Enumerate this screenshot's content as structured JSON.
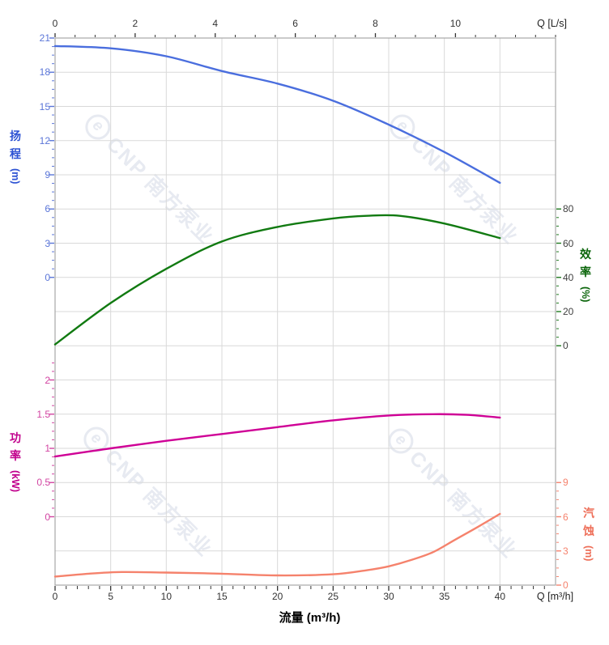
{
  "page": {
    "background": "#ffffff"
  },
  "watermark": {
    "text": "CNP 南方泵业",
    "logo_glyph": "e",
    "color": "#e7eaf1",
    "instances": 4
  },
  "chart_data": {
    "type": "line",
    "title": "",
    "x_axis": {
      "label_bottom": "流量 (m³/h)",
      "unit_bottom": "Q [m³/h]",
      "unit_top": "Q [L/s]",
      "range_m3h": [
        0,
        45
      ],
      "bottom_major_ticks": [
        0,
        5,
        10,
        15,
        20,
        25,
        30,
        35,
        40
      ],
      "bottom_minor_step": 1,
      "top_major_ticks_ls": [
        0,
        2,
        4,
        6,
        8,
        10
      ],
      "top_minor_step_ls": 0.5,
      "top_range_ls": [
        0,
        12.5
      ],
      "ls_to_m3h": 3.6,
      "tick_color": "#333333",
      "label_color": "#333333"
    },
    "y_axes": [
      {
        "id": "head",
        "title": "扬程",
        "unit": "(m)",
        "side": "left",
        "major_ticks": [
          21,
          18,
          15,
          12,
          9,
          6,
          3,
          0
        ],
        "major_step": 3,
        "minor_step": 0.75,
        "minor_range": [
          0,
          21
        ],
        "value_per_div": 3,
        "zero_div_index": 7,
        "title_color": "#2d52d3",
        "tick_color": "#5b76d8",
        "label_color": "#5b76d8"
      },
      {
        "id": "efficiency",
        "title": "效率",
        "unit": "(%)",
        "side": "right",
        "major_ticks": [
          80,
          60,
          40,
          20,
          0
        ],
        "major_step": 20,
        "minor_step": 5,
        "minor_range": [
          0,
          80
        ],
        "value_per_div": 20,
        "zero_div_index": 9,
        "title_color": "#0a650a",
        "tick_color": "#1f7a1f",
        "label_color": "#3f3f3f"
      },
      {
        "id": "power",
        "title": "功率",
        "unit": "(kW)",
        "side": "left",
        "major_ticks": [
          2,
          1.5,
          1,
          0.5,
          0
        ],
        "major_step": 0.5,
        "minor_step": 0.125,
        "minor_range": [
          0,
          2.25
        ],
        "value_per_div": 0.5,
        "zero_div_index": 14,
        "title_color": "#c1008c",
        "tick_color": "#d245a2",
        "label_color": "#d245a2"
      },
      {
        "id": "npsh",
        "title": "汽蚀",
        "unit": "(m)",
        "side": "right",
        "major_ticks": [
          9,
          6,
          3,
          0
        ],
        "major_step": 3,
        "minor_step": 0.75,
        "minor_range": [
          0,
          9
        ],
        "value_per_div": 3,
        "zero_div_index": 16,
        "title_color": "#ee6f59",
        "tick_color": "#f5836e",
        "label_color": "#f5836e"
      }
    ],
    "series": [
      {
        "name": "head-curve",
        "axis": "head",
        "color": "#4a6ede",
        "width": 2.4,
        "points": [
          [
            0,
            20.3
          ],
          [
            5,
            20.1
          ],
          [
            10,
            19.4
          ],
          [
            15,
            18.1
          ],
          [
            20,
            17.0
          ],
          [
            25,
            15.5
          ],
          [
            30,
            13.4
          ],
          [
            35,
            11.0
          ],
          [
            40,
            8.3
          ]
        ]
      },
      {
        "name": "efficiency-curve",
        "axis": "efficiency",
        "color": "#117a11",
        "width": 2.4,
        "points": [
          [
            0,
            0.8
          ],
          [
            5,
            25
          ],
          [
            10,
            45
          ],
          [
            15,
            61
          ],
          [
            20,
            69.5
          ],
          [
            25,
            74.5
          ],
          [
            28,
            76
          ],
          [
            31,
            76
          ],
          [
            35,
            71.5
          ],
          [
            40,
            63
          ]
        ]
      },
      {
        "name": "power-curve",
        "axis": "power",
        "color": "#cf0096",
        "width": 2.4,
        "points": [
          [
            0,
            0.88
          ],
          [
            5,
            1.0
          ],
          [
            10,
            1.11
          ],
          [
            15,
            1.21
          ],
          [
            20,
            1.31
          ],
          [
            25,
            1.41
          ],
          [
            30,
            1.48
          ],
          [
            34,
            1.5
          ],
          [
            37,
            1.49
          ],
          [
            40,
            1.45
          ]
        ]
      },
      {
        "name": "npsh-curve",
        "axis": "npsh",
        "color": "#f5826c",
        "width": 2.4,
        "points": [
          [
            0,
            0.75
          ],
          [
            3,
            1.0
          ],
          [
            6,
            1.15
          ],
          [
            10,
            1.1
          ],
          [
            15,
            1.0
          ],
          [
            20,
            0.85
          ],
          [
            25,
            0.95
          ],
          [
            28,
            1.3
          ],
          [
            30,
            1.65
          ],
          [
            32,
            2.2
          ],
          [
            34,
            2.9
          ],
          [
            36,
            4.0
          ],
          [
            38,
            5.1
          ],
          [
            40,
            6.25
          ]
        ]
      }
    ],
    "grid": {
      "on": true,
      "color": "#d9d9d9",
      "border_color": "#a8a8a8",
      "h_divisions": 16,
      "v_step_m3h": 5,
      "legend": "none"
    }
  }
}
